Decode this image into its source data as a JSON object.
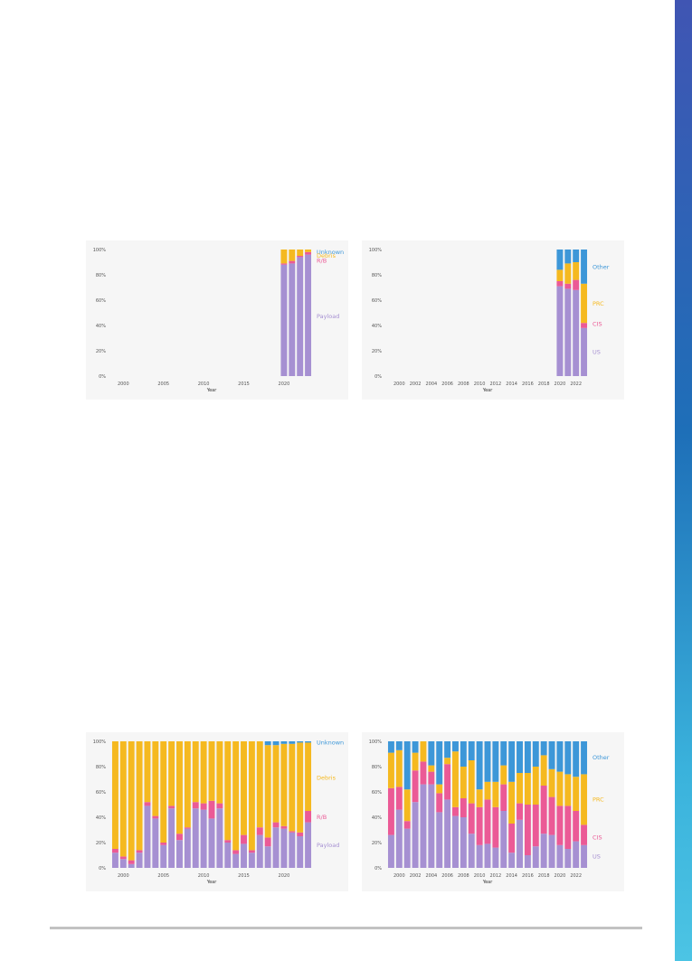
{
  "colors": {
    "payload": "#a690d2",
    "rb": "#eb5a96",
    "debris": "#f5b920",
    "unknown": "#3d97d8",
    "us": "#a690d2",
    "cis": "#eb5a96",
    "prc": "#f5b920",
    "other": "#3d97d8",
    "sidebar": "#2c63b5"
  },
  "chart_data": [
    {
      "id": "top-left",
      "type": "bar",
      "stacked": true,
      "xlabel": "Year",
      "ylabel": "",
      "y_ticks": [
        "0%",
        "20%",
        "40%",
        "60%",
        "80%",
        "100%"
      ],
      "x_ticks": [
        {
          "label": "2000",
          "year": 2000
        },
        {
          "label": "2005",
          "year": 2005
        },
        {
          "label": "2010",
          "year": 2010
        },
        {
          "label": "2015",
          "year": 2015
        },
        {
          "label": "2020",
          "year": 2020
        }
      ],
      "x_range": [
        1998.5,
        2023.5
      ],
      "ylim": [
        0,
        100
      ],
      "x": [
        2020,
        2021,
        2022,
        2023
      ],
      "series": [
        {
          "name": "Payload",
          "color_key": "payload",
          "values": [
            88,
            89,
            94,
            96
          ]
        },
        {
          "name": "R/B",
          "color_key": "rb",
          "values": [
            1,
            2,
            1,
            2
          ]
        },
        {
          "name": "Debris",
          "color_key": "debris",
          "values": [
            11,
            9,
            5,
            2
          ]
        },
        {
          "name": "Unknown",
          "color_key": "unknown",
          "values": [
            0,
            0,
            0,
            0
          ]
        }
      ],
      "labels": [
        {
          "text": "Unknown",
          "color_key": "unknown",
          "y": 98
        },
        {
          "text": "Debris",
          "color_key": "debris",
          "y": 95
        },
        {
          "text": "R/B",
          "color_key": "rb",
          "y": 91
        },
        {
          "text": "Payload",
          "color_key": "payload",
          "y": 47
        }
      ]
    },
    {
      "id": "top-right",
      "type": "bar",
      "stacked": true,
      "xlabel": "Year",
      "ylabel": "",
      "y_ticks": [
        "0%",
        "20%",
        "40%",
        "60%",
        "80%",
        "100%"
      ],
      "x_ticks": [
        {
          "label": "2000",
          "year": 2000
        },
        {
          "label": "2002",
          "year": 2002
        },
        {
          "label": "2004",
          "year": 2004
        },
        {
          "label": "2006",
          "year": 2006
        },
        {
          "label": "2008",
          "year": 2008
        },
        {
          "label": "2010",
          "year": 2010
        },
        {
          "label": "2012",
          "year": 2012
        },
        {
          "label": "2014",
          "year": 2014
        },
        {
          "label": "2016",
          "year": 2016
        },
        {
          "label": "2018",
          "year": 2018
        },
        {
          "label": "2020",
          "year": 2020
        },
        {
          "label": "2022",
          "year": 2022
        }
      ],
      "x_range": [
        1998.5,
        2023.5
      ],
      "ylim": [
        0,
        100
      ],
      "x": [
        2020,
        2021,
        2022,
        2023
      ],
      "series": [
        {
          "name": "US",
          "color_key": "us",
          "values": [
            71,
            69,
            68,
            38
          ]
        },
        {
          "name": "CIS",
          "color_key": "cis",
          "values": [
            4,
            4,
            8,
            4
          ]
        },
        {
          "name": "PRC",
          "color_key": "prc",
          "values": [
            9,
            16,
            14,
            31
          ]
        },
        {
          "name": "Other",
          "color_key": "other",
          "values": [
            16,
            11,
            10,
            27
          ]
        }
      ],
      "labels": [
        {
          "text": "Other",
          "color_key": "other",
          "y": 86
        },
        {
          "text": "PRC",
          "color_key": "prc",
          "y": 57
        },
        {
          "text": "CIS",
          "color_key": "cis",
          "y": 41
        },
        {
          "text": "US",
          "color_key": "us",
          "y": 19
        }
      ]
    },
    {
      "id": "bottom-left",
      "type": "bar",
      "stacked": true,
      "xlabel": "Year",
      "ylabel": "",
      "y_ticks": [
        "0%",
        "20%",
        "40%",
        "60%",
        "80%",
        "100%"
      ],
      "x_ticks": [
        {
          "label": "2000",
          "year": 2000
        },
        {
          "label": "2005",
          "year": 2005
        },
        {
          "label": "2010",
          "year": 2010
        },
        {
          "label": "2015",
          "year": 2015
        },
        {
          "label": "2020",
          "year": 2020
        }
      ],
      "x_range": [
        1998.5,
        2023.5
      ],
      "ylim": [
        0,
        100
      ],
      "x": [
        1999,
        2000,
        2001,
        2002,
        2003,
        2004,
        2005,
        2006,
        2007,
        2008,
        2009,
        2010,
        2011,
        2012,
        2013,
        2014,
        2015,
        2016,
        2017,
        2018,
        2019,
        2020,
        2021,
        2022,
        2023
      ],
      "series": [
        {
          "name": "Payload",
          "color_key": "payload",
          "values": [
            12,
            7,
            3,
            12,
            49,
            39,
            18,
            47,
            22,
            31,
            47,
            46,
            39,
            47,
            20,
            11,
            19,
            12,
            26,
            17,
            32,
            31,
            28,
            25,
            36
          ]
        },
        {
          "name": "R/B",
          "color_key": "rb",
          "values": [
            3,
            2,
            3,
            2,
            3,
            2,
            2,
            2,
            5,
            1,
            5,
            5,
            14,
            4,
            2,
            3,
            7,
            2,
            6,
            7,
            4,
            2,
            1,
            3,
            9
          ]
        },
        {
          "name": "Debris",
          "color_key": "debris",
          "values": [
            85,
            91,
            94,
            86,
            48,
            59,
            80,
            51,
            73,
            68,
            48,
            49,
            47,
            49,
            78,
            86,
            74,
            86,
            68,
            73,
            61,
            65,
            69,
            71,
            54
          ]
        },
        {
          "name": "Unknown",
          "color_key": "unknown",
          "values": [
            0,
            0,
            0,
            0,
            0,
            0,
            0,
            0,
            0,
            0,
            0,
            0,
            0,
            0,
            0,
            0,
            0,
            0,
            0,
            3,
            3,
            2,
            2,
            1,
            1
          ]
        }
      ],
      "labels": [
        {
          "text": "Unknown",
          "color_key": "unknown",
          "y": 99
        },
        {
          "text": "Debris",
          "color_key": "debris",
          "y": 71
        },
        {
          "text": "R/B",
          "color_key": "rb",
          "y": 40
        },
        {
          "text": "Payload",
          "color_key": "payload",
          "y": 18
        }
      ]
    },
    {
      "id": "bottom-right",
      "type": "bar",
      "stacked": true,
      "xlabel": "Year",
      "ylabel": "",
      "y_ticks": [
        "0%",
        "20%",
        "40%",
        "60%",
        "80%",
        "100%"
      ],
      "x_ticks": [
        {
          "label": "2000",
          "year": 2000
        },
        {
          "label": "2002",
          "year": 2002
        },
        {
          "label": "2004",
          "year": 2004
        },
        {
          "label": "2006",
          "year": 2006
        },
        {
          "label": "2008",
          "year": 2008
        },
        {
          "label": "2010",
          "year": 2010
        },
        {
          "label": "2012",
          "year": 2012
        },
        {
          "label": "2014",
          "year": 2014
        },
        {
          "label": "2016",
          "year": 2016
        },
        {
          "label": "2018",
          "year": 2018
        },
        {
          "label": "2020",
          "year": 2020
        },
        {
          "label": "2022",
          "year": 2022
        }
      ],
      "x_range": [
        1998.5,
        2023.5
      ],
      "ylim": [
        0,
        100
      ],
      "x": [
        1999,
        2000,
        2001,
        2002,
        2003,
        2004,
        2005,
        2006,
        2007,
        2008,
        2009,
        2010,
        2011,
        2012,
        2013,
        2014,
        2015,
        2016,
        2017,
        2018,
        2019,
        2020,
        2021,
        2022,
        2023
      ],
      "series": [
        {
          "name": "US",
          "color_key": "us",
          "values": [
            26,
            46,
            31,
            52,
            66,
            66,
            44,
            54,
            41,
            40,
            27,
            18,
            19,
            16,
            45,
            12,
            38,
            10,
            17,
            27,
            26,
            18,
            15,
            21,
            18
          ]
        },
        {
          "name": "CIS",
          "color_key": "cis",
          "values": [
            37,
            18,
            6,
            25,
            18,
            10,
            15,
            28,
            7,
            15,
            24,
            30,
            35,
            32,
            21,
            23,
            13,
            40,
            33,
            38,
            30,
            31,
            34,
            24,
            16
          ]
        },
        {
          "name": "PRC",
          "color_key": "prc",
          "values": [
            28,
            29,
            25,
            14,
            16,
            5,
            7,
            5,
            44,
            25,
            34,
            14,
            14,
            20,
            15,
            33,
            24,
            25,
            30,
            24,
            22,
            27,
            25,
            27,
            40
          ]
        },
        {
          "name": "Other",
          "color_key": "other",
          "values": [
            9,
            7,
            38,
            9,
            0,
            19,
            34,
            13,
            8,
            20,
            15,
            38,
            32,
            32,
            19,
            32,
            25,
            25,
            20,
            11,
            22,
            24,
            26,
            28,
            26
          ]
        }
      ],
      "labels": [
        {
          "text": "Other",
          "color_key": "other",
          "y": 87
        },
        {
          "text": "PRC",
          "color_key": "prc",
          "y": 54
        },
        {
          "text": "CIS",
          "color_key": "cis",
          "y": 24
        },
        {
          "text": "US",
          "color_key": "us",
          "y": 9
        }
      ]
    }
  ]
}
